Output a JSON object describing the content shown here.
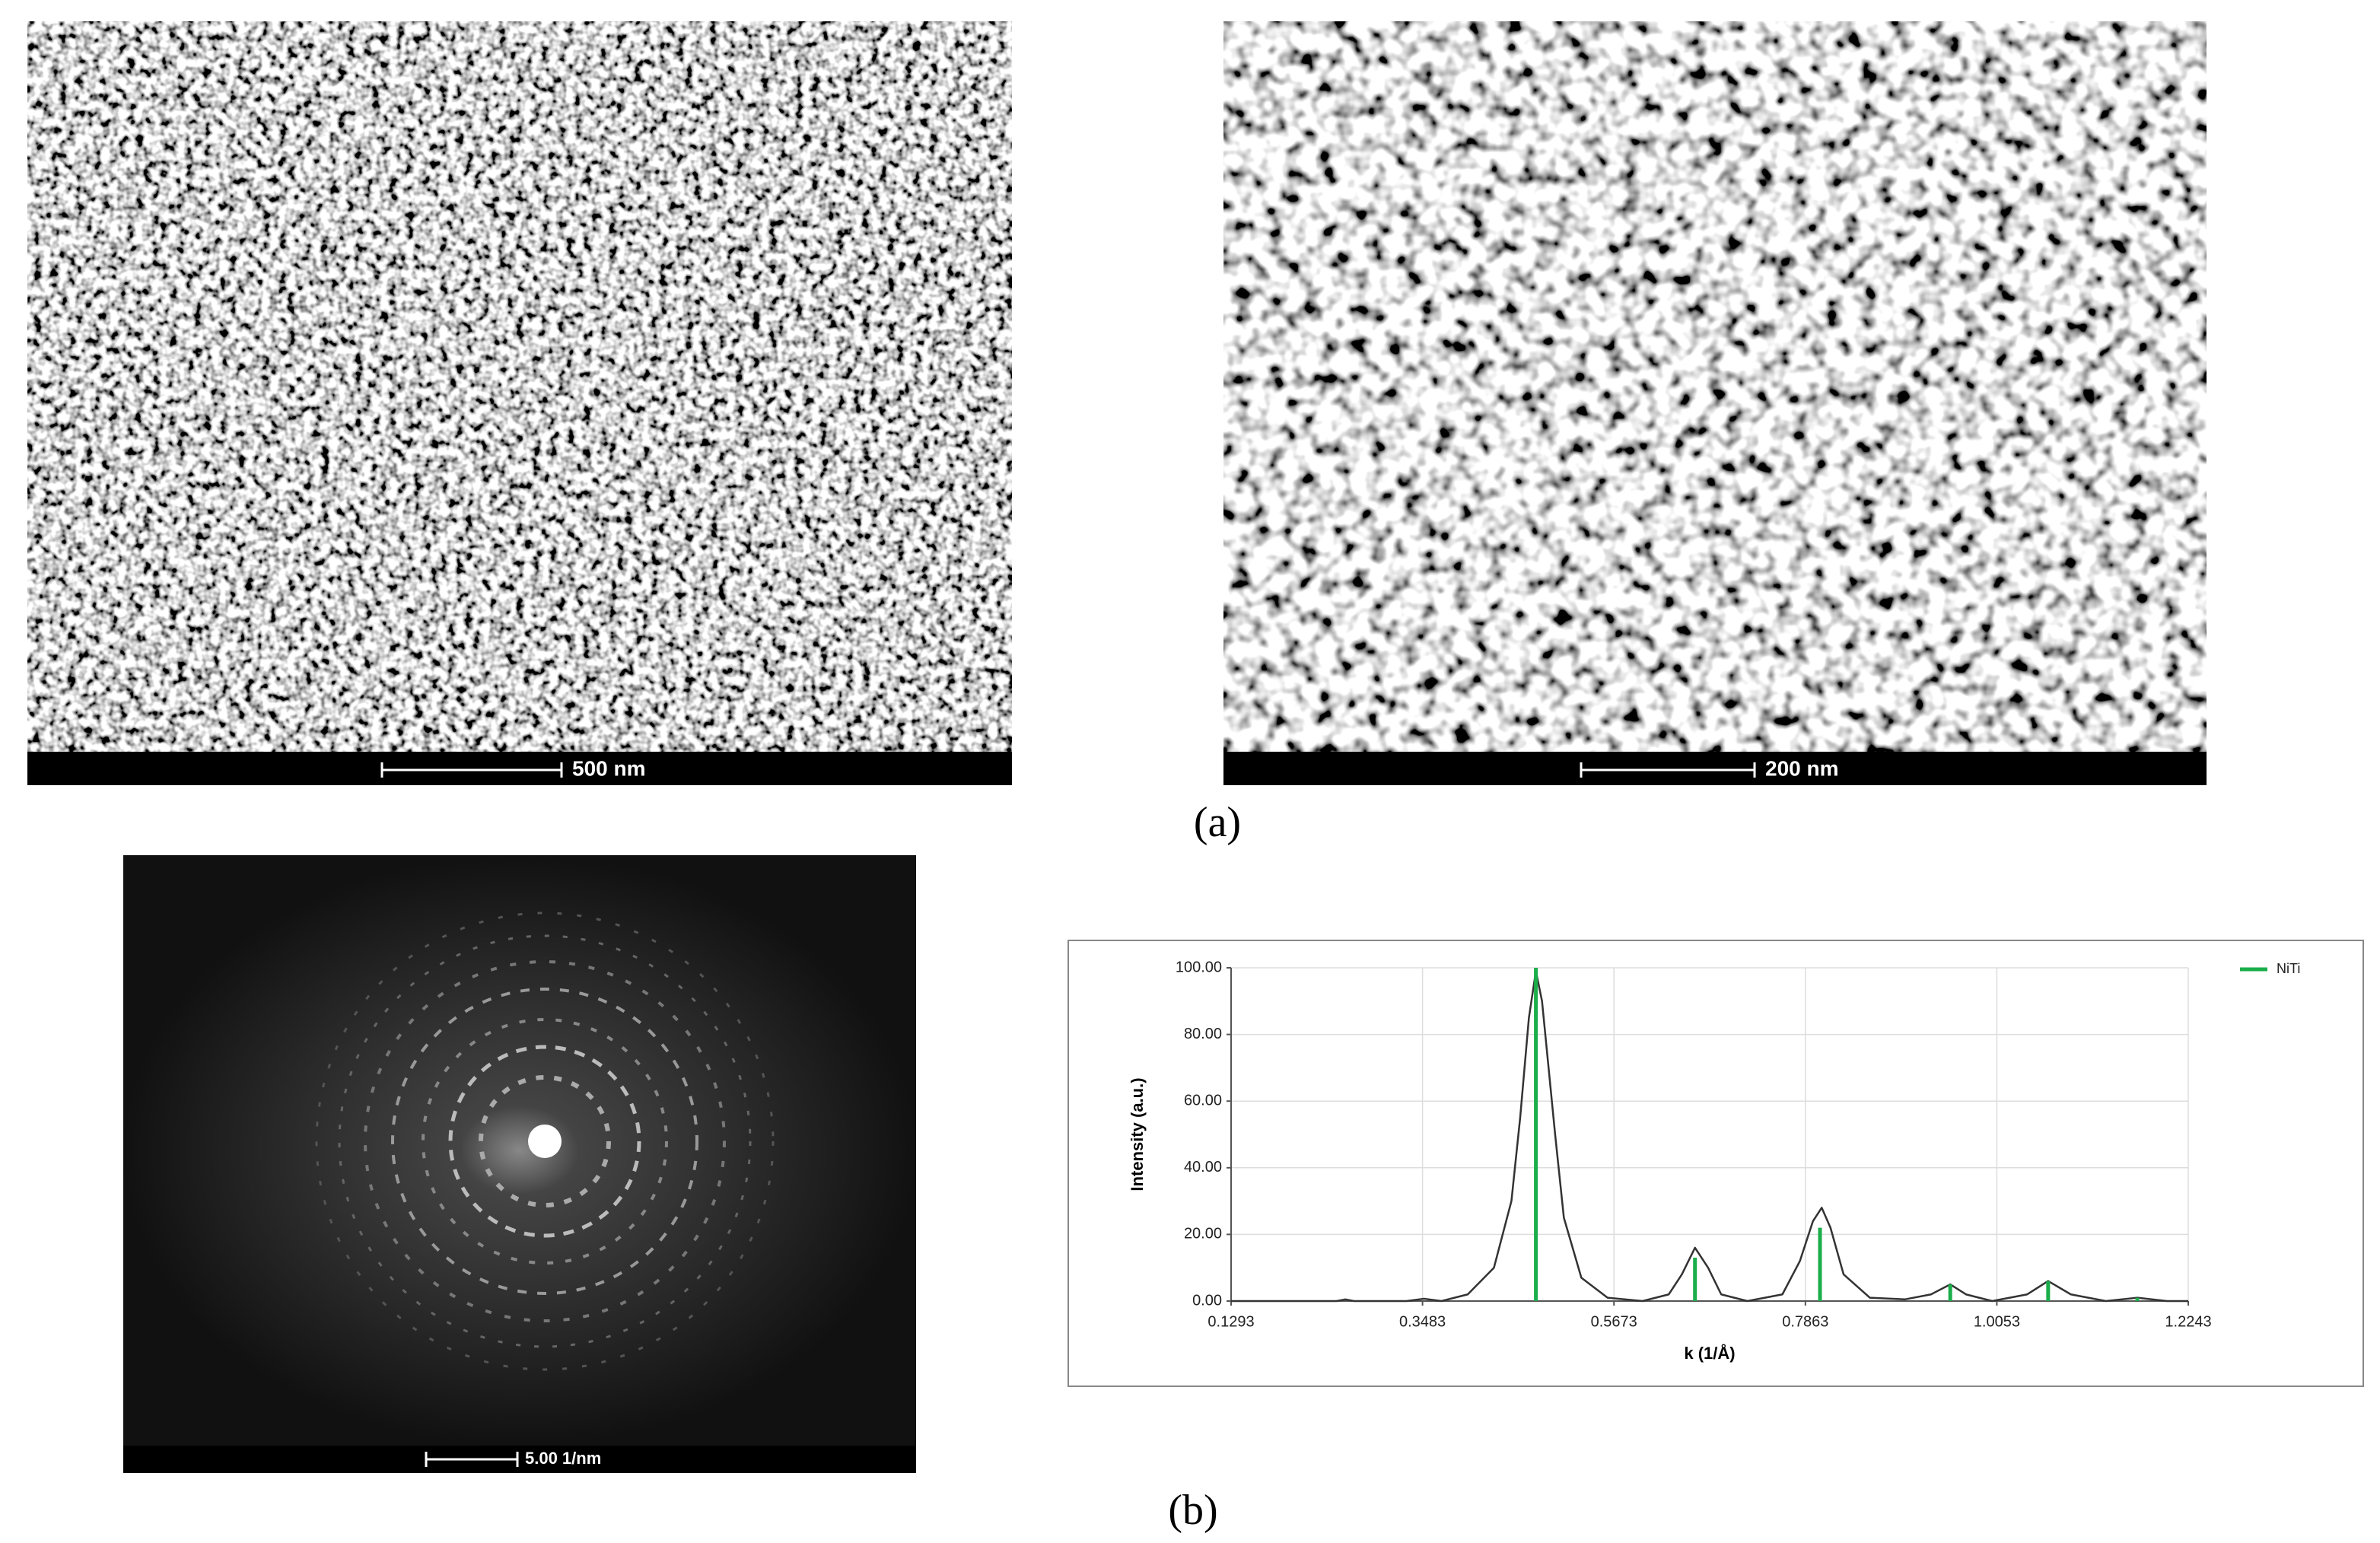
{
  "panel_labels": [
    "(a)",
    "(b)"
  ],
  "images": [
    {
      "scale_bar": "500 nm"
    },
    {
      "scale_bar": "200 nm"
    },
    {
      "scale_bar": "5.00 1/nm"
    }
  ],
  "chart_data": {
    "type": "line",
    "x_label": "k (1/Å)",
    "y_label": "Intensity (a.u.)",
    "xlim": [
      0.1293,
      1.2243
    ],
    "xticks": [
      0.1293,
      0.3483,
      0.5673,
      0.7863,
      1.0053,
      1.2243
    ],
    "ylim": [
      0,
      100
    ],
    "yticks": [
      {
        "value": 0,
        "label": "0.00"
      },
      {
        "value": 20,
        "label": "20.00"
      },
      {
        "value": 40,
        "label": "40.00"
      },
      {
        "value": 60,
        "label": "60.00"
      },
      {
        "value": 80,
        "label": "80.00"
      },
      {
        "value": 100,
        "label": "100.00"
      }
    ],
    "grid": true,
    "legend": "top-right",
    "series": [
      {
        "type": "line",
        "color": "#333333",
        "x": [
          0.1293,
          0.25,
          0.26,
          0.27,
          0.33,
          0.35,
          0.37,
          0.4,
          0.43,
          0.45,
          0.46,
          0.47,
          0.478,
          0.485,
          0.5,
          0.51,
          0.53,
          0.56,
          0.6,
          0.63,
          0.645,
          0.66,
          0.675,
          0.69,
          0.72,
          0.76,
          0.78,
          0.795,
          0.805,
          0.815,
          0.83,
          0.86,
          0.9,
          0.93,
          0.952,
          0.97,
          1.0,
          1.04,
          1.064,
          1.09,
          1.13,
          1.166,
          1.2,
          1.2243
        ],
        "values": [
          0,
          0,
          0.5,
          0,
          0,
          0.7,
          0,
          2,
          10,
          30,
          55,
          85,
          99,
          90,
          50,
          25,
          7,
          1,
          0,
          2,
          8,
          16,
          10,
          2,
          0,
          2,
          12,
          24,
          28,
          22,
          8,
          1,
          0.5,
          2,
          5,
          2,
          0,
          2,
          6,
          2,
          0,
          1,
          0,
          0
        ]
      },
      {
        "type": "stem",
        "name": "NiTi",
        "color": "#1aae4a",
        "x": [
          0.478,
          0.66,
          0.803,
          0.952,
          1.064,
          1.166
        ],
        "values": [
          100,
          13,
          22,
          5,
          6,
          1
        ]
      }
    ]
  }
}
